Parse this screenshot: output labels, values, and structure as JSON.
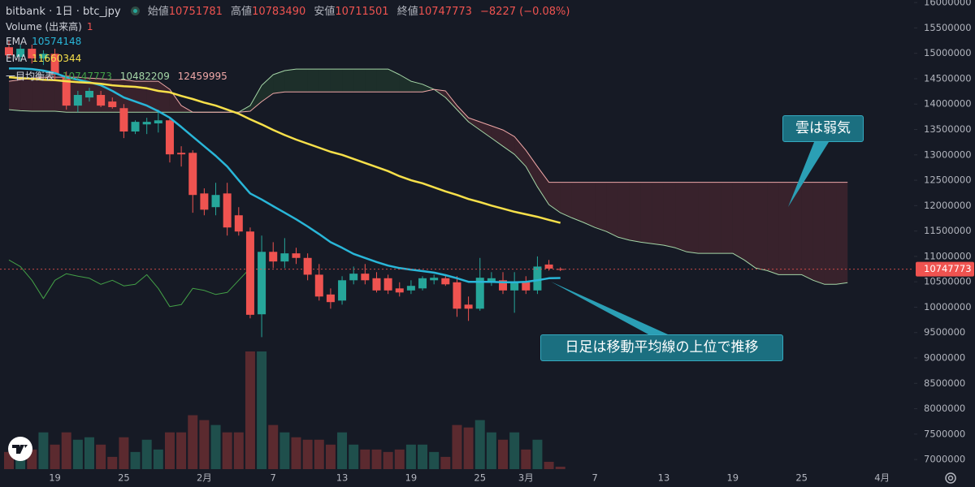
{
  "chart_data": {
    "type": "candlestick",
    "header": {
      "symbol": "bitbank · 1日 · btc_jpy",
      "ohlc_labels": [
        "始値",
        "高値",
        "安値",
        "終値"
      ],
      "change": "−8227 (−0.08%)"
    },
    "categories": [
      null,
      null,
      null,
      null,
      "19",
      null,
      null,
      null,
      null,
      null,
      "25",
      null,
      null,
      null,
      null,
      null,
      null,
      "2月",
      null,
      null,
      null,
      null,
      null,
      "7",
      null,
      null,
      null,
      null,
      null,
      "13",
      null,
      null,
      null,
      null,
      null,
      "19",
      null,
      null,
      null,
      null,
      null,
      "25",
      null,
      null,
      null,
      "3月",
      null,
      null,
      null,
      null,
      null,
      "7",
      null,
      null,
      null,
      null,
      null,
      "13",
      null,
      null,
      null,
      null,
      null,
      "19",
      null,
      null,
      null,
      null,
      null,
      "25",
      null,
      null,
      null,
      null,
      null,
      null,
      "4月"
    ],
    "candles": {
      "up_color": "#26a69a",
      "down_color": "#ef5350",
      "open": [
        15120000,
        14930000,
        15090000,
        14900000,
        14990000,
        14560000,
        13970000,
        14130000,
        14180000,
        14050000,
        13920000,
        13460000,
        13600000,
        13620000,
        13680000,
        13040000,
        13040000,
        12240000,
        11970000,
        12240000,
        11810000,
        11490000,
        9860000,
        11090000,
        10900000,
        11060000,
        10970000,
        10640000,
        10250000,
        10130000,
        10530000,
        10660000,
        10570000,
        10570000,
        10370000,
        10330000,
        10370000,
        10530000,
        10570000,
        10490000,
        10050000,
        9970000,
        10500000,
        10530000,
        10330000,
        10490000,
        10330000,
        10840000,
        10751781,
        null,
        null,
        null,
        null,
        null,
        null,
        null,
        null,
        null,
        null,
        null,
        null,
        null,
        null,
        null,
        null,
        null,
        null,
        null,
        null,
        null,
        null,
        null,
        null,
        null,
        null,
        null,
        null
      ],
      "high": [
        15250000,
        15170000,
        15170000,
        15060000,
        15090000,
        14640000,
        14260000,
        14320000,
        14260000,
        14130000,
        14000000,
        13680000,
        13730000,
        13890000,
        13730000,
        13170000,
        13090000,
        12340000,
        12450000,
        12450000,
        11970000,
        11570000,
        11410000,
        11280000,
        11360000,
        11170000,
        11060000,
        10850000,
        10370000,
        10610000,
        10800000,
        10850000,
        10690000,
        10640000,
        10490000,
        10530000,
        10610000,
        10640000,
        10640000,
        10610000,
        10210000,
        10970000,
        10690000,
        10690000,
        10690000,
        10610000,
        11000000,
        10930000,
        10783490,
        null,
        null,
        null,
        null,
        null,
        null,
        null,
        null,
        null,
        null,
        null,
        null,
        null,
        null,
        null,
        null,
        null,
        null,
        null,
        null,
        null,
        null,
        null,
        null,
        null,
        null,
        null,
        null
      ],
      "low": [
        14900000,
        14850000,
        14800000,
        14770000,
        14450000,
        13890000,
        13840000,
        14050000,
        13940000,
        13910000,
        13330000,
        13410000,
        13410000,
        13440000,
        12850000,
        12770000,
        11860000,
        11810000,
        11810000,
        11410000,
        11410000,
        9780000,
        9410000,
        10770000,
        10770000,
        10850000,
        10530000,
        10130000,
        9970000,
        10050000,
        10450000,
        10450000,
        10290000,
        10260000,
        10210000,
        10260000,
        10330000,
        10450000,
        10420000,
        9810000,
        9730000,
        9930000,
        10420000,
        10260000,
        9890000,
        10260000,
        10260000,
        10720000,
        10711501,
        null,
        null,
        null,
        null,
        null,
        null,
        null,
        null,
        null,
        null,
        null,
        null,
        null,
        null,
        null,
        null,
        null,
        null,
        null,
        null,
        null,
        null,
        null,
        null,
        null,
        null,
        null,
        null
      ],
      "close": [
        14960000,
        15090000,
        14900000,
        14990000,
        14580000,
        13970000,
        14180000,
        14260000,
        13970000,
        13940000,
        13460000,
        13650000,
        13650000,
        13680000,
        13010000,
        13010000,
        12210000,
        11920000,
        12210000,
        11570000,
        11490000,
        9850000,
        11090000,
        10900000,
        11060000,
        10970000,
        10640000,
        10210000,
        10100000,
        10530000,
        10660000,
        10530000,
        10330000,
        10330000,
        10290000,
        10420000,
        10570000,
        10580000,
        10450000,
        9970000,
        9970000,
        10580000,
        10570000,
        10330000,
        10490000,
        10330000,
        10800000,
        10760000,
        10747773,
        null,
        null,
        null,
        null,
        null,
        null,
        null,
        null,
        null,
        null,
        null,
        null,
        null,
        null,
        null,
        null,
        null,
        null,
        null,
        null,
        null,
        null,
        null,
        null,
        null,
        null,
        null,
        null
      ]
    },
    "volume": {
      "name": "Volume (出来高)",
      "up_color": "#1f4f4c",
      "down_color": "#5b2a2f",
      "values": [
        7,
        5,
        8,
        15,
        10,
        15,
        12,
        13,
        10,
        5,
        13,
        7,
        12,
        8,
        15,
        15,
        22,
        20,
        18,
        15,
        15,
        48,
        48,
        18,
        15,
        13,
        12,
        12,
        10,
        15,
        10,
        8,
        8,
        7,
        8,
        10,
        10,
        7,
        5,
        18,
        17,
        20,
        15,
        12,
        15,
        8,
        12,
        3,
        1,
        null,
        null,
        null,
        null,
        null,
        null,
        null,
        null,
        null,
        null,
        null,
        null,
        null,
        null,
        null,
        null,
        null,
        null,
        null,
        null,
        null,
        null,
        null,
        null,
        null,
        null,
        null,
        null
      ]
    },
    "series": [
      {
        "name": "EMA",
        "color": "#29b6d8",
        "values": [
          14700000,
          14700000,
          14690000,
          14660000,
          14610000,
          14530000,
          14480000,
          14430000,
          14370000,
          14260000,
          14130000,
          14050000,
          13970000,
          13860000,
          13730000,
          13550000,
          13360000,
          13170000,
          12980000,
          12770000,
          12500000,
          12240000,
          12120000,
          11990000,
          11860000,
          11730000,
          11590000,
          11440000,
          11280000,
          11170000,
          11050000,
          10970000,
          10890000,
          10820000,
          10770000,
          10740000,
          10710000,
          10680000,
          10630000,
          10570000,
          10500000,
          10500000,
          10500000,
          10490000,
          10490000,
          10500000,
          10530000,
          10570000,
          10574148,
          null,
          null,
          null,
          null,
          null,
          null,
          null,
          null,
          null,
          null,
          null,
          null,
          null,
          null,
          null,
          null,
          null,
          null,
          null,
          null,
          null,
          null,
          null,
          null,
          null,
          null,
          null,
          null
        ]
      },
      {
        "name": "EMA",
        "color": "#f7e04a",
        "values": [
          14530000,
          14510000,
          14500000,
          14480000,
          14470000,
          14450000,
          14430000,
          14420000,
          14400000,
          14370000,
          14350000,
          14340000,
          14310000,
          14260000,
          14230000,
          14160000,
          14100000,
          14030000,
          13970000,
          13890000,
          13810000,
          13700000,
          13600000,
          13490000,
          13390000,
          13300000,
          13220000,
          13140000,
          13060000,
          13000000,
          12920000,
          12840000,
          12760000,
          12680000,
          12580000,
          12500000,
          12440000,
          12360000,
          12280000,
          12210000,
          12130000,
          12070000,
          12000000,
          11940000,
          11880000,
          11830000,
          11780000,
          11720000,
          11660344,
          null,
          null,
          null,
          null,
          null,
          null,
          null,
          null,
          null,
          null,
          null,
          null,
          null,
          null,
          null,
          null,
          null,
          null,
          null,
          null,
          null,
          null,
          null,
          null,
          null,
          null,
          null,
          null
        ]
      }
    ],
    "ichimoku": {
      "name": "一目均衡表",
      "span_a": {
        "color": "#a5d6a7",
        "cloud_color": "rgba(67,160,71,0.16)",
        "values": [
          13890000,
          13870000,
          13860000,
          13860000,
          13860000,
          13840000,
          13840000,
          13840000,
          13840000,
          13840000,
          13840000,
          13840000,
          13840000,
          13840000,
          13840000,
          13840000,
          13840000,
          13840000,
          13840000,
          13840000,
          13840000,
          13970000,
          14370000,
          14580000,
          14660000,
          14690000,
          14690000,
          14690000,
          14690000,
          14690000,
          14690000,
          14690000,
          14690000,
          14690000,
          14580000,
          14450000,
          14390000,
          14290000,
          14130000,
          13890000,
          13650000,
          13490000,
          13330000,
          13170000,
          13010000,
          12770000,
          12370000,
          12020000,
          11860000,
          11760000,
          11670000,
          11570000,
          11490000,
          11380000,
          11320000,
          11280000,
          11250000,
          11220000,
          11170000,
          11090000,
          11060000,
          11060000,
          11060000,
          11060000,
          10930000,
          10770000,
          10720000,
          10640000,
          10640000,
          10640000,
          10530000,
          10450000,
          10450000,
          10482209,
          null,
          null,
          null
        ]
      },
      "span_b": {
        "color": "#f0a8a8",
        "cloud_color": "rgba(239,83,80,0.16)",
        "values": [
          14450000,
          14480000,
          14510000,
          14530000,
          14530000,
          14530000,
          14530000,
          14510000,
          14500000,
          14480000,
          14480000,
          14450000,
          14450000,
          14450000,
          14290000,
          13970000,
          13840000,
          13840000,
          13840000,
          13840000,
          13840000,
          13860000,
          14050000,
          14210000,
          14240000,
          14240000,
          14240000,
          14240000,
          14240000,
          14240000,
          14240000,
          14240000,
          14240000,
          14240000,
          14240000,
          14240000,
          14240000,
          14290000,
          14260000,
          13970000,
          13730000,
          13650000,
          13570000,
          13490000,
          13360000,
          13090000,
          12770000,
          12459995,
          12459995,
          12459995,
          12459995,
          12459995,
          12459995,
          12459995,
          12459995,
          12459995,
          12459995,
          12459995,
          12459995,
          12459995,
          12459995,
          12459995,
          12459995,
          12459995,
          12459995,
          12459995,
          12459995,
          12459995,
          12459995,
          12459995,
          12459995,
          12459995,
          12459995,
          12459995,
          null,
          null,
          null
        ]
      },
      "lagging": {
        "color": "#43a047",
        "values": [
          10930000,
          10800000,
          10530000,
          10170000,
          10530000,
          10660000,
          10610000,
          10570000,
          10450000,
          10530000,
          10420000,
          10450000,
          10640000,
          10370000,
          10010000,
          10050000,
          10370000,
          10330000,
          10250000,
          10290000,
          10530000,
          10770000,
          null,
          null,
          null,
          null,
          null,
          null,
          null,
          null,
          null,
          null,
          null,
          null,
          null,
          null,
          null,
          null,
          null,
          null,
          null,
          null,
          null,
          null,
          null,
          null,
          null,
          null,
          null,
          null,
          null,
          null,
          null,
          null,
          null,
          null,
          null,
          null,
          null,
          null,
          null,
          null,
          null,
          null,
          null,
          null,
          null,
          null,
          null,
          null,
          null,
          null,
          null,
          null,
          null,
          null,
          null
        ]
      }
    },
    "ylim": [
      6810000,
      16050000
    ],
    "yticks": [
      7000000,
      7500000,
      8000000,
      8500000,
      9000000,
      9500000,
      10000000,
      10500000,
      11000000,
      11500000,
      12000000,
      12500000,
      13000000,
      13500000,
      14000000,
      14500000,
      15000000,
      15500000,
      16000000
    ],
    "grid": false,
    "annotations": [
      "雲は弱気",
      "日足は移動平均線の上位で推移"
    ]
  }
}
